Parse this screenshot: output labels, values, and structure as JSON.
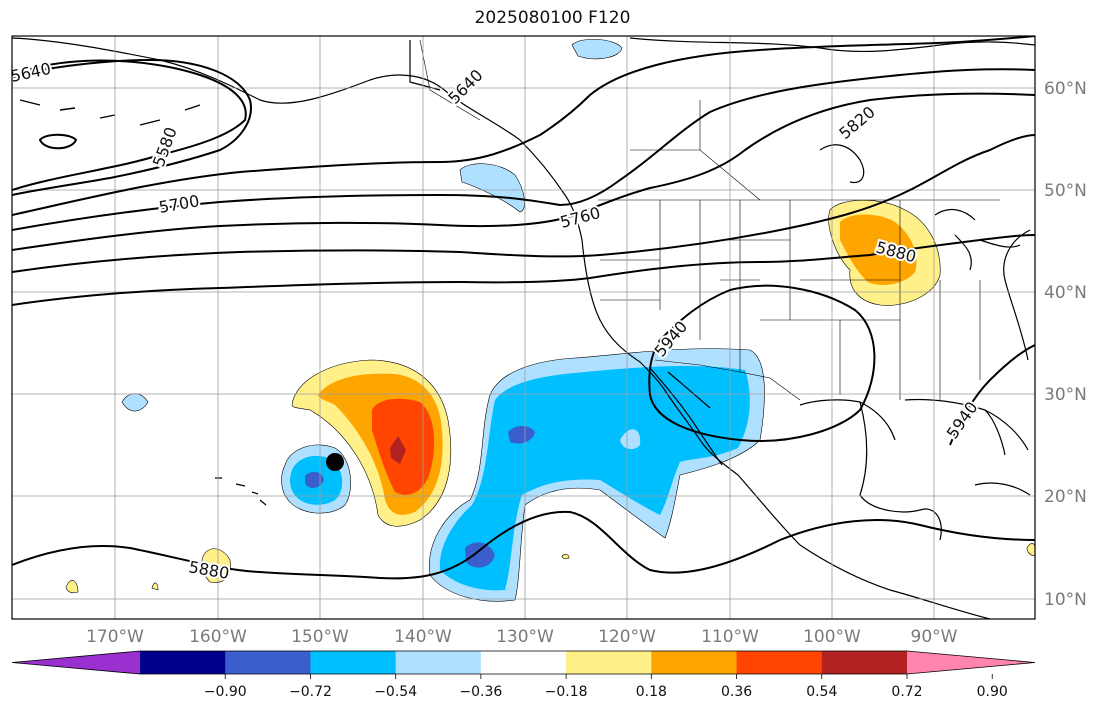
{
  "title": "2025080100 F120",
  "lat_labels": [
    "60°N",
    "50°N",
    "40°N",
    "30°N",
    "20°N",
    "10°N"
  ],
  "lon_labels": [
    "170°W",
    "160°W",
    "150°W",
    "140°W",
    "130°W",
    "120°W",
    "110°W",
    "100°W",
    "90°W"
  ],
  "contour_labels": [
    "5640",
    "5580",
    "5700",
    "5640",
    "5760",
    "5820",
    "5880",
    "5940",
    "5940",
    "5880"
  ],
  "colorbar": {
    "ticks": [
      "−0.90",
      "−0.72",
      "−0.54",
      "−0.36",
      "−0.18",
      "0.18",
      "0.36",
      "0.54",
      "0.72",
      "0.90"
    ],
    "colors": [
      "#9b30d0",
      "#00008b",
      "#3a5fcd",
      "#00bfff",
      "#b0e0ff",
      "#ffffff",
      "#fff08a",
      "#ffa500",
      "#ff4500",
      "#b22222",
      "#ff85b0"
    ]
  },
  "colors": {
    "grid": "#9e9e9e",
    "contour": "#000000"
  }
}
